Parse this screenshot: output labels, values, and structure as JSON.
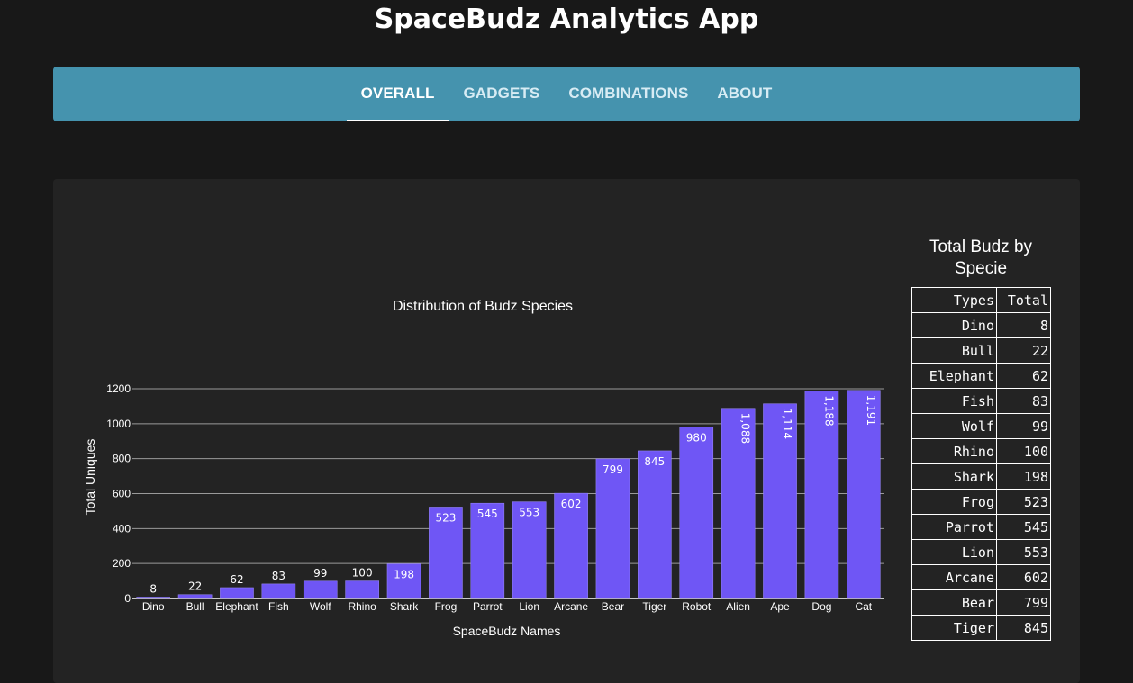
{
  "app": {
    "title": "SpaceBudz Analytics App"
  },
  "nav": {
    "tabs": [
      {
        "label": "OVERALL",
        "active": true
      },
      {
        "label": "GADGETS",
        "active": false
      },
      {
        "label": "COMBINATIONS",
        "active": false
      },
      {
        "label": "ABOUT",
        "active": false
      }
    ]
  },
  "colors": {
    "bar": "#6f56f5",
    "navbar": "#4593ae",
    "background": "#181818",
    "card": "#232323"
  },
  "chart_data": {
    "type": "bar",
    "title": "Distribution of Budz Species",
    "xlabel": "SpaceBudz Names",
    "ylabel": "Total Uniques",
    "categories": [
      "Dino",
      "Bull",
      "Elephant",
      "Fish",
      "Wolf",
      "Rhino",
      "Shark",
      "Frog",
      "Parrot",
      "Lion",
      "Arcane",
      "Bear",
      "Tiger",
      "Robot",
      "Alien",
      "Ape",
      "Dog",
      "Cat"
    ],
    "values": [
      8,
      22,
      62,
      83,
      99,
      100,
      198,
      523,
      545,
      553,
      602,
      799,
      845,
      980,
      1088,
      1114,
      1188,
      1191
    ],
    "data_labels": [
      "8",
      "22",
      "62",
      "83",
      "99",
      "100",
      "198",
      "523",
      "545",
      "553",
      "602",
      "799",
      "845",
      "980",
      "1,088",
      "1,114",
      "1,188",
      "1,191"
    ],
    "yticks": [
      "0",
      "200",
      "400",
      "600",
      "800",
      "1000",
      "1200"
    ],
    "ylim": [
      0,
      1200
    ],
    "grid": true
  },
  "table": {
    "title": "Total Budz by Specie",
    "headers": [
      "Types",
      "Total"
    ],
    "rows": [
      [
        "Dino",
        "8"
      ],
      [
        "Bull",
        "22"
      ],
      [
        "Elephant",
        "62"
      ],
      [
        "Fish",
        "83"
      ],
      [
        "Wolf",
        "99"
      ],
      [
        "Rhino",
        "100"
      ],
      [
        "Shark",
        "198"
      ],
      [
        "Frog",
        "523"
      ],
      [
        "Parrot",
        "545"
      ],
      [
        "Lion",
        "553"
      ],
      [
        "Arcane",
        "602"
      ],
      [
        "Bear",
        "799"
      ],
      [
        "Tiger",
        "845"
      ]
    ]
  }
}
